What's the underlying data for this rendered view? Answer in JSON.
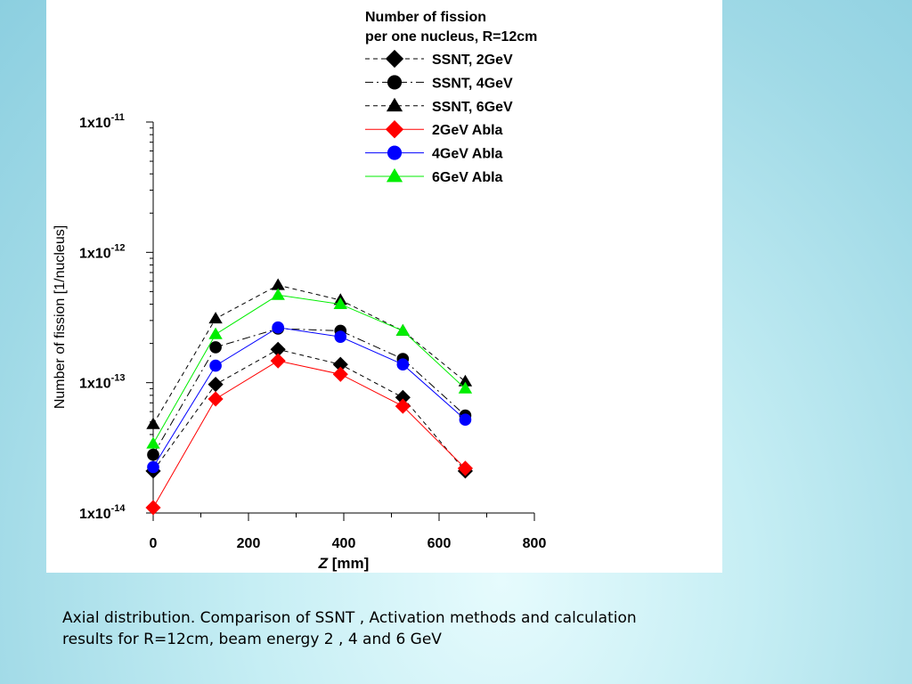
{
  "caption": {
    "line1": "Axial distribution. Comparison of SSNT , Activation methods and calculation",
    "line2": "results for R=12cm, beam energy 2 , 4 and 6 GeV"
  },
  "chart_data": {
    "type": "line",
    "legend_title": [
      "Number of fission",
      "per one nucleus, R=12cm"
    ],
    "xlabel": {
      "italic": "Z",
      "rest": " [mm]"
    },
    "ylabel": "Number of fission [1/nucleus]",
    "xlim": [
      0,
      800
    ],
    "ylim": [
      1e-14,
      1e-11
    ],
    "yscale": "log",
    "x_ticks": [
      "0",
      "200",
      "400",
      "600",
      "800"
    ],
    "y_ticks": [
      {
        "base": "1x10",
        "exp": "-14"
      },
      {
        "base": "1x10",
        "exp": "-13"
      },
      {
        "base": "1x10",
        "exp": "-12"
      },
      {
        "base": "1x10",
        "exp": "-11"
      }
    ],
    "grid": false,
    "legend_position": "top-right",
    "x": [
      0,
      131,
      262,
      393,
      524,
      655
    ],
    "series": [
      {
        "name": "SSNT, 2GeV",
        "color": "#000000",
        "marker": "diamond",
        "line": "dashed",
        "values": [
          2.1e-14,
          9.7e-14,
          1.8e-13,
          1.38e-13,
          7.7e-14,
          2.1e-14
        ]
      },
      {
        "name": "SSNT, 4GeV",
        "color": "#000000",
        "marker": "circle",
        "line": "dashdot",
        "values": [
          2.8e-14,
          1.87e-13,
          2.6e-13,
          2.5e-13,
          1.52e-13,
          5.6e-14
        ]
      },
      {
        "name": "SSNT, 6GeV",
        "color": "#000000",
        "marker": "triangle",
        "line": "dashed",
        "values": [
          4.8e-14,
          3.1e-13,
          5.6e-13,
          4.3e-13,
          2.5e-13,
          1.02e-13
        ]
      },
      {
        "name": "2GeV Abla",
        "color": "#ff0000",
        "marker": "diamond",
        "line": "solid",
        "values": [
          1.1e-14,
          7.5e-14,
          1.47e-13,
          1.16e-13,
          6.6e-14,
          2.2e-14
        ]
      },
      {
        "name": "4GeV Abla",
        "color": "#0000ff",
        "marker": "circle",
        "line": "solid",
        "values": [
          2.25e-14,
          1.35e-13,
          2.65e-13,
          2.25e-13,
          1.38e-13,
          5.2e-14
        ]
      },
      {
        "name": "6GeV Abla",
        "color": "#00ee00",
        "marker": "triangle",
        "line": "solid",
        "values": [
          3.4e-14,
          2.35e-13,
          4.7e-13,
          4e-13,
          2.5e-13,
          9e-14
        ]
      }
    ]
  }
}
